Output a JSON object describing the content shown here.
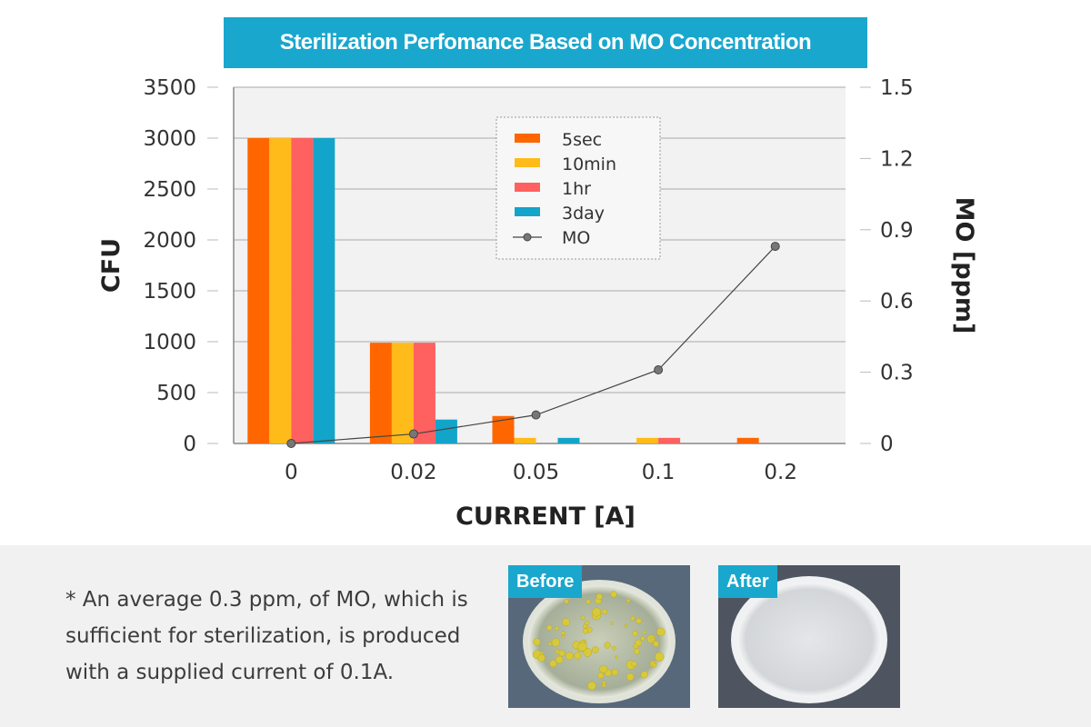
{
  "title": "Sterilization Perfomance Based on MO Concentration",
  "chart_data": {
    "type": "bar",
    "title": "Sterilization Perfomance Based on MO Concentration",
    "xlabel": "CURRENT [A]",
    "ylabel": "CFU",
    "y2label": "MO [ppm]",
    "categories": [
      "0",
      "0.02",
      "0.05",
      "0.1",
      "0.2"
    ],
    "ylim": [
      0,
      3500
    ],
    "yticks": [
      "0",
      "500",
      "1000",
      "1500",
      "2000",
      "2500",
      "3000",
      "3500"
    ],
    "y2lim": [
      0,
      1.5
    ],
    "y2ticks": [
      "0",
      "0.3",
      "0.6",
      "0.9",
      "1.2",
      "1.5"
    ],
    "grid": true,
    "legend_position": "top-center",
    "series": [
      {
        "name": "5sec",
        "type": "bar",
        "color": "#ff6600",
        "values": [
          3000,
          990,
          270,
          0,
          55
        ]
      },
      {
        "name": "10min",
        "type": "bar",
        "color": "#ffbb1a",
        "values": [
          3000,
          990,
          55,
          55,
          0
        ]
      },
      {
        "name": "1hr",
        "type": "bar",
        "color": "#ff6060",
        "values": [
          3000,
          990,
          0,
          55,
          0
        ]
      },
      {
        "name": "3day",
        "type": "bar",
        "color": "#12a5c9",
        "values": [
          3000,
          235,
          55,
          0,
          0
        ]
      },
      {
        "name": "MO",
        "type": "line",
        "axis": "y2",
        "color": "#444444",
        "values": [
          0.0,
          0.04,
          0.12,
          0.31,
          0.83
        ]
      }
    ]
  },
  "footer": {
    "note": "* An average 0.3 ppm, of MO, which is sufficient for sterilization, is produced with a  supplied current of 0.1A.",
    "before_label": "Before",
    "after_label": "After"
  }
}
